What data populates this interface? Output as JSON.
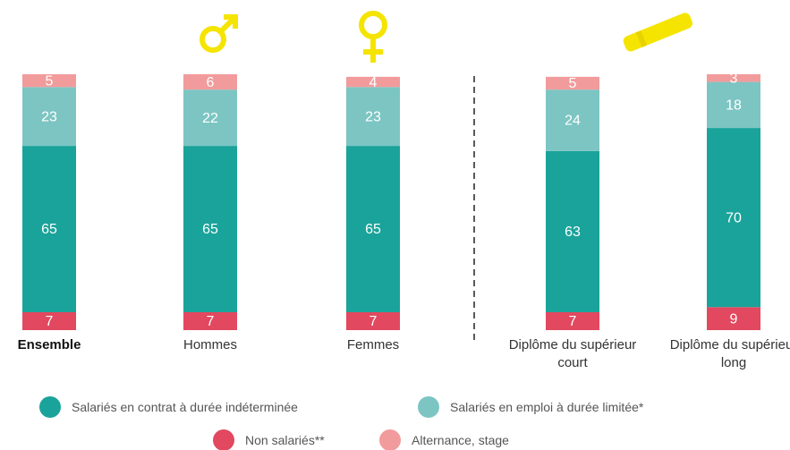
{
  "chart_data": {
    "type": "stacked_bar",
    "categories": [
      "Ensemble",
      "Hommes",
      "Femmes",
      "Diplôme du supérieur court",
      "Diplôme du supérieur long"
    ],
    "series": [
      {
        "name": "Non salariés**",
        "color": "#e2485f",
        "values": [
          7,
          7,
          7,
          7,
          9
        ]
      },
      {
        "name": "Salariés en contrat à durée indéterminée",
        "color": "#1aa39a",
        "values": [
          65,
          65,
          65,
          63,
          70
        ]
      },
      {
        "name": "Salariés en emploi à durée limitée*",
        "color": "#7cc5c3",
        "values": [
          23,
          22,
          23,
          24,
          18
        ]
      },
      {
        "name": "Alternance, stage",
        "color": "#f29b9c",
        "values": [
          5,
          6,
          4,
          5,
          3
        ]
      }
    ]
  }
}
